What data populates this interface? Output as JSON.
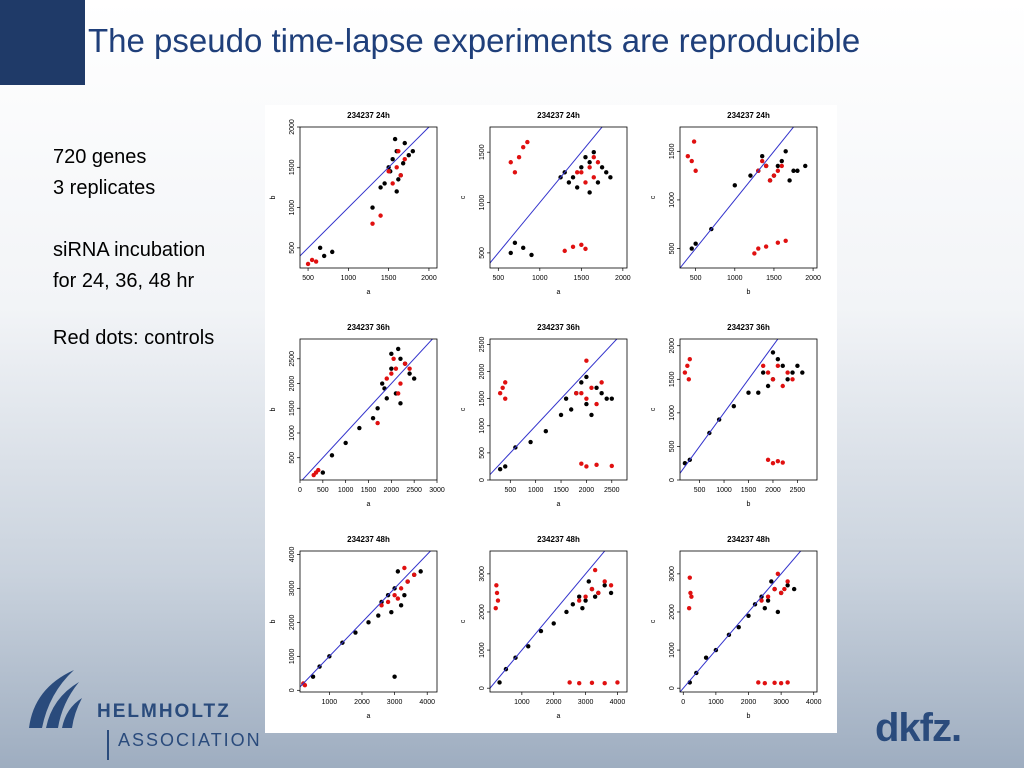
{
  "header": {
    "title": "The pseudo time-lapse experiments are reproducible"
  },
  "body": {
    "lines": [
      "720 genes",
      "3 replicates",
      "siRNA incubation",
      "for 24, 36, 48 hr",
      "Red dots: controls"
    ]
  },
  "footer": {
    "helmholtz": [
      "HELMHOLTZ",
      "ASSOCIATION"
    ],
    "dkfz": "dkfz."
  },
  "chart_data": [
    {
      "type": "scatter",
      "title": "234237 24h",
      "xlabel": "a",
      "ylabel": "b",
      "xlim": [
        400,
        2100
      ],
      "ylim": [
        250,
        2000
      ],
      "xticks": [
        500,
        1000,
        1500,
        2000
      ],
      "yticks": [
        500,
        1000,
        1500,
        2000
      ],
      "diagonal": true,
      "diagonal_color": "#3333cc",
      "series": [
        {
          "color": "#000000",
          "x": [
            1500,
            1550,
            1600,
            1650,
            1700,
            1450,
            1750,
            1600,
            1520,
            1680,
            1400,
            1300,
            800,
            700,
            650,
            1800,
            1580,
            1620
          ],
          "values": [
            1500,
            1600,
            1700,
            1400,
            1800,
            1300,
            1650,
            1200,
            1450,
            1550,
            1250,
            1000,
            450,
            400,
            500,
            1700,
            1850,
            1350
          ]
        },
        {
          "color": "#e01010",
          "x": [
            1600,
            1650,
            1550,
            1700,
            1500,
            1620,
            1400,
            1300,
            550,
            600,
            500
          ],
          "values": [
            1500,
            1400,
            1300,
            1600,
            1450,
            1700,
            900,
            800,
            350,
            330,
            300
          ]
        }
      ]
    },
    {
      "type": "scatter",
      "title": "234237 24h",
      "xlabel": "a",
      "ylabel": "c",
      "xlim": [
        400,
        2050
      ],
      "ylim": [
        350,
        1750
      ],
      "xticks": [
        500,
        1000,
        1500,
        2000
      ],
      "yticks": [
        500,
        1000,
        1500
      ],
      "diagonal": true,
      "diagonal_color": "#3333cc",
      "series": [
        {
          "color": "#000000",
          "x": [
            1300,
            1400,
            1500,
            1600,
            1700,
            1800,
            1450,
            1550,
            1650,
            1350,
            1750,
            1250,
            800,
            700,
            650,
            900,
            1600,
            1850
          ],
          "values": [
            1300,
            1250,
            1350,
            1400,
            1200,
            1300,
            1150,
            1450,
            1500,
            1200,
            1350,
            1250,
            550,
            600,
            500,
            480,
            1100,
            1250
          ]
        },
        {
          "color": "#e01010",
          "x": [
            1500,
            1600,
            1650,
            1700,
            1550,
            1450,
            1650,
            750,
            800,
            650,
            850,
            700,
            1300,
            1400,
            1500,
            1550
          ],
          "values": [
            1300,
            1350,
            1250,
            1400,
            1200,
            1300,
            1450,
            1450,
            1550,
            1400,
            1600,
            1300,
            520,
            560,
            580,
            540
          ]
        }
      ]
    },
    {
      "type": "scatter",
      "title": "234237 24h",
      "xlabel": "b",
      "ylabel": "c",
      "xlim": [
        300,
        2050
      ],
      "ylim": [
        300,
        1750
      ],
      "xticks": [
        500,
        1000,
        1500,
        2000
      ],
      "yticks": [
        500,
        1000,
        1500
      ],
      "diagonal": true,
      "diagonal_color": "#3333cc",
      "series": [
        {
          "color": "#000000",
          "x": [
            1300,
            1400,
            1500,
            1600,
            1700,
            1800,
            1350,
            1450,
            1550,
            1650,
            1200,
            1000,
            700,
            500,
            450,
            1750,
            1900
          ],
          "values": [
            1300,
            1350,
            1250,
            1400,
            1200,
            1300,
            1450,
            1200,
            1350,
            1500,
            1250,
            1150,
            700,
            550,
            500,
            1300,
            1350
          ]
        },
        {
          "color": "#e01010",
          "x": [
            1300,
            1400,
            1500,
            1600,
            1350,
            1450,
            1550,
            450,
            500,
            400,
            480,
            1250,
            1300,
            1550,
            1650,
            1400
          ],
          "values": [
            1300,
            1350,
            1250,
            1350,
            1400,
            1200,
            1300,
            1400,
            1300,
            1450,
            1600,
            450,
            500,
            560,
            580,
            520
          ]
        }
      ]
    },
    {
      "type": "scatter",
      "title": "234237 36h",
      "xlabel": "a",
      "ylabel": "b",
      "xlim": [
        0,
        3000
      ],
      "ylim": [
        50,
        2900
      ],
      "xticks": [
        0,
        500,
        1000,
        1500,
        2000,
        2500,
        3000
      ],
      "yticks": [
        500,
        1000,
        1500,
        2000,
        2500
      ],
      "diagonal": true,
      "diagonal_color": "#3333cc",
      "series": [
        {
          "color": "#000000",
          "x": [
            1800,
            2000,
            2200,
            2400,
            2100,
            1900,
            2300,
            2000,
            2200,
            1700,
            1600,
            1300,
            1000,
            700,
            500,
            2500,
            2150,
            1850
          ],
          "values": [
            2000,
            2300,
            2500,
            2200,
            1800,
            1700,
            2400,
            2600,
            1600,
            1500,
            1300,
            1100,
            800,
            550,
            200,
            2100,
            2700,
            1900
          ]
        },
        {
          "color": "#e01010",
          "x": [
            2000,
            2100,
            2200,
            2300,
            1900,
            2400,
            2150,
            2050,
            1700,
            400,
            350,
            300
          ],
          "values": [
            2200,
            2300,
            2000,
            2400,
            2100,
            2300,
            1800,
            2500,
            1200,
            250,
            200,
            150
          ]
        }
      ]
    },
    {
      "type": "scatter",
      "title": "234237 36h",
      "xlabel": "a",
      "ylabel": "c",
      "xlim": [
        100,
        2800
      ],
      "ylim": [
        0,
        2600
      ],
      "xticks": [
        500,
        1000,
        1500,
        2000,
        2500
      ],
      "yticks": [
        0,
        500,
        1000,
        1500,
        2000,
        2500
      ],
      "diagonal": true,
      "diagonal_color": "#3333cc",
      "series": [
        {
          "color": "#000000",
          "x": [
            1600,
            1800,
            2000,
            2200,
            2400,
            1700,
            1900,
            2100,
            2300,
            1500,
            1200,
            900,
            600,
            400,
            300,
            2500,
            2000
          ],
          "values": [
            1500,
            1600,
            1400,
            1700,
            1500,
            1300,
            1800,
            1200,
            1600,
            1200,
            900,
            700,
            600,
            250,
            200,
            1500,
            1900
          ]
        },
        {
          "color": "#e01010",
          "x": [
            1900,
            2000,
            2100,
            2200,
            1800,
            2300,
            2000,
            400,
            300,
            350,
            400,
            1900,
            2000,
            2200,
            2500
          ],
          "values": [
            1600,
            1500,
            1700,
            1400,
            1600,
            1800,
            2200,
            1800,
            1600,
            1700,
            1500,
            300,
            250,
            280,
            260
          ]
        }
      ]
    },
    {
      "type": "scatter",
      "title": "234237 36h",
      "xlabel": "b",
      "ylabel": "c",
      "xlim": [
        100,
        2900
      ],
      "ylim": [
        0,
        2100
      ],
      "xticks": [
        500,
        1000,
        1500,
        2000,
        2500
      ],
      "yticks": [
        0,
        500,
        1000,
        1500,
        2000
      ],
      "diagonal": true,
      "diagonal_color": "#3333cc",
      "series": [
        {
          "color": "#000000",
          "x": [
            1800,
            2000,
            2200,
            2400,
            1900,
            2100,
            2300,
            1700,
            2500,
            1500,
            1200,
            900,
            700,
            300,
            200,
            2600,
            2000
          ],
          "values": [
            1600,
            1500,
            1700,
            1600,
            1400,
            1800,
            1500,
            1300,
            1700,
            1300,
            1100,
            900,
            700,
            300,
            250,
            1600,
            1900
          ]
        },
        {
          "color": "#e01010",
          "x": [
            1900,
            2000,
            2100,
            2200,
            2300,
            1800,
            2400,
            250,
            300,
            200,
            280,
            1900,
            2000,
            2100,
            2200
          ],
          "values": [
            1600,
            1500,
            1700,
            1400,
            1600,
            1700,
            1500,
            1700,
            1800,
            1600,
            1500,
            300,
            250,
            280,
            260
          ]
        }
      ]
    },
    {
      "type": "scatter",
      "title": "234237 48h",
      "xlabel": "a",
      "ylabel": "b",
      "xlim": [
        100,
        4300
      ],
      "ylim": [
        -50,
        4100
      ],
      "xticks": [
        1000,
        2000,
        3000,
        4000
      ],
      "yticks": [
        0,
        1000,
        2000,
        3000,
        4000
      ],
      "diagonal": true,
      "diagonal_color": "#3333cc",
      "series": [
        {
          "color": "#000000",
          "x": [
            2600,
            2800,
            3000,
            3200,
            3400,
            3600,
            2900,
            3100,
            3300,
            2500,
            2200,
            1800,
            1400,
            1000,
            700,
            500,
            3800,
            3000
          ],
          "values": [
            2600,
            2800,
            3000,
            2500,
            3200,
            3400,
            2300,
            3500,
            2800,
            2200,
            2000,
            1700,
            1400,
            1000,
            700,
            400,
            3500,
            400
          ]
        },
        {
          "color": "#e01010",
          "x": [
            3000,
            3200,
            3400,
            2800,
            3600,
            2600,
            3300,
            3100,
            200,
            250
          ],
          "values": [
            2800,
            3000,
            3200,
            2600,
            3400,
            2500,
            3600,
            2700,
            200,
            150
          ]
        }
      ]
    },
    {
      "type": "scatter",
      "title": "234237 48h",
      "xlabel": "a",
      "ylabel": "c",
      "xlim": [
        0,
        4300
      ],
      "ylim": [
        -100,
        3600
      ],
      "xticks": [
        1000,
        2000,
        3000,
        4000
      ],
      "yticks": [
        0,
        1000,
        2000,
        3000
      ],
      "diagonal": true,
      "diagonal_color": "#3333cc",
      "series": [
        {
          "color": "#000000",
          "x": [
            2600,
            2800,
            3000,
            3200,
            3400,
            3600,
            2900,
            3100,
            3300,
            2400,
            2000,
            1600,
            1200,
            800,
            500,
            300,
            3800
          ],
          "values": [
            2200,
            2400,
            2300,
            2600,
            2500,
            2700,
            2100,
            2800,
            2400,
            2000,
            1700,
            1500,
            1100,
            800,
            500,
            150,
            2500
          ]
        },
        {
          "color": "#e01010",
          "x": [
            3000,
            3200,
            3400,
            3600,
            3800,
            2800,
            3300,
            200,
            250,
            180,
            220,
            2500,
            2800,
            3200,
            3600,
            4000
          ],
          "values": [
            2400,
            2600,
            2500,
            2800,
            2700,
            2300,
            3100,
            2700,
            2300,
            2100,
            2500,
            150,
            130,
            140,
            130,
            150
          ]
        }
      ]
    },
    {
      "type": "scatter",
      "title": "234237 48h",
      "xlabel": "b",
      "ylabel": "c",
      "xlim": [
        -100,
        4100
      ],
      "ylim": [
        -100,
        3600
      ],
      "xticks": [
        0,
        1000,
        2000,
        3000,
        4000
      ],
      "yticks": [
        0,
        1000,
        2000,
        3000
      ],
      "diagonal": true,
      "diagonal_color": "#3333cc",
      "series": [
        {
          "color": "#000000",
          "x": [
            2200,
            2400,
            2600,
            2800,
            3000,
            3200,
            2500,
            2700,
            2900,
            2000,
            1700,
            1400,
            1000,
            700,
            400,
            200,
            3400
          ],
          "values": [
            2200,
            2400,
            2300,
            2600,
            2500,
            2700,
            2100,
            2800,
            2000,
            1900,
            1600,
            1400,
            1000,
            800,
            400,
            150,
            2600
          ]
        },
        {
          "color": "#e01010",
          "x": [
            2600,
            2800,
            3000,
            3200,
            2400,
            2900,
            3100,
            200,
            250,
            180,
            220,
            2300,
            2500,
            2800,
            3000,
            3200
          ],
          "values": [
            2400,
            2600,
            2500,
            2800,
            2300,
            3000,
            2600,
            2900,
            2400,
            2100,
            2500,
            150,
            130,
            140,
            130,
            150
          ]
        }
      ]
    }
  ]
}
